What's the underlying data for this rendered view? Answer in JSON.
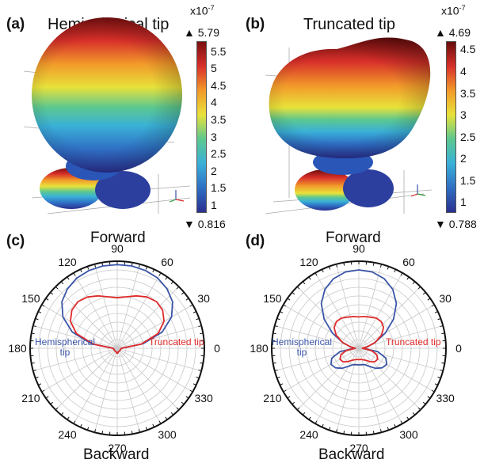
{
  "panels": {
    "a": {
      "label": "(a)",
      "title": "Hemispherical tip",
      "cb_exp": "x10",
      "cb_exp_sup": "-7",
      "cb_max": "5.79",
      "cb_min": "0.816",
      "cb_ticks": [
        "5.5",
        "5",
        "4.5",
        "4",
        "3.5",
        "3",
        "2.5",
        "2",
        "1.5",
        "1"
      ]
    },
    "b": {
      "label": "(b)",
      "title": "Truncated tip",
      "cb_exp": "x10",
      "cb_exp_sup": "-7",
      "cb_max": "4.69",
      "cb_min": "0.788",
      "cb_ticks": [
        "4.5",
        "4",
        "3.5",
        "3",
        "2.5",
        "2",
        "1.5",
        "1"
      ]
    },
    "c": {
      "label": "(c)",
      "forward": "Forward",
      "backward": "Backward",
      "hemi_label_1": "Hemispherical",
      "hemi_label_2": "tip",
      "trunc_label": "Truncated tip"
    },
    "d": {
      "label": "(d)",
      "forward": "Forward",
      "backward": "Backward",
      "hemi_label_1": "Hemispherical",
      "hemi_label_2": "tip",
      "trunc_label": "Truncated tip"
    }
  },
  "colors": {
    "hemispherical": "#3a55a8",
    "truncated": "#e02a2a"
  },
  "chart_data": [
    {
      "type": "polar",
      "panel": "c",
      "angle_ticks": [
        "0",
        "30",
        "60",
        "90",
        "120",
        "150",
        "180",
        "210",
        "240",
        "270",
        "300",
        "330"
      ],
      "series": [
        {
          "name": "Hemispherical tip",
          "color": "#3a55a8",
          "theta": [
            0,
            10,
            20,
            30,
            40,
            50,
            60,
            70,
            80,
            90,
            100,
            110,
            120,
            130,
            140,
            150,
            160,
            170,
            180,
            190,
            200,
            210,
            220,
            230,
            240,
            250,
            260,
            270,
            280,
            290,
            300,
            310,
            320,
            330,
            340,
            350
          ],
          "r": [
            0.05,
            0.3,
            0.55,
            0.72,
            0.83,
            0.89,
            0.93,
            0.95,
            0.96,
            0.96,
            0.96,
            0.95,
            0.93,
            0.89,
            0.83,
            0.72,
            0.55,
            0.3,
            0.05,
            0.04,
            0.04,
            0.04,
            0.04,
            0.04,
            0.04,
            0.04,
            0.05,
            0.06,
            0.05,
            0.04,
            0.04,
            0.04,
            0.04,
            0.04,
            0.04,
            0.04
          ]
        },
        {
          "name": "Truncated tip",
          "color": "#e02a2a",
          "theta": [
            0,
            10,
            20,
            30,
            40,
            50,
            60,
            70,
            80,
            90,
            100,
            110,
            120,
            130,
            140,
            150,
            160,
            170,
            180,
            190,
            200,
            210,
            220,
            230,
            240,
            250,
            260,
            270,
            280,
            290,
            300,
            310,
            320,
            330,
            340,
            350
          ],
          "r": [
            0.05,
            0.28,
            0.5,
            0.62,
            0.68,
            0.7,
            0.68,
            0.64,
            0.6,
            0.58,
            0.6,
            0.64,
            0.68,
            0.7,
            0.68,
            0.62,
            0.5,
            0.28,
            0.05,
            0.04,
            0.04,
            0.04,
            0.04,
            0.04,
            0.04,
            0.04,
            0.05,
            0.06,
            0.05,
            0.04,
            0.04,
            0.04,
            0.04,
            0.04,
            0.04,
            0.04
          ]
        }
      ]
    },
    {
      "type": "polar",
      "panel": "d",
      "angle_ticks": [
        "0",
        "30",
        "60",
        "90",
        "120",
        "150",
        "180",
        "210",
        "240",
        "270",
        "300",
        "330"
      ],
      "series": [
        {
          "name": "Hemispherical tip",
          "color": "#3a55a8",
          "theta": [
            0,
            10,
            20,
            30,
            40,
            50,
            60,
            70,
            80,
            90,
            100,
            110,
            120,
            130,
            140,
            150,
            160,
            170,
            180,
            190,
            200,
            210,
            220,
            230,
            240,
            250,
            260,
            270,
            280,
            290,
            300,
            310,
            320,
            330,
            340,
            350
          ],
          "r": [
            0.05,
            0.1,
            0.2,
            0.35,
            0.52,
            0.67,
            0.78,
            0.85,
            0.89,
            0.9,
            0.89,
            0.85,
            0.78,
            0.67,
            0.52,
            0.35,
            0.2,
            0.1,
            0.05,
            0.22,
            0.33,
            0.37,
            0.35,
            0.3,
            0.24,
            0.2,
            0.19,
            0.19,
            0.19,
            0.2,
            0.24,
            0.3,
            0.35,
            0.37,
            0.33,
            0.22
          ]
        },
        {
          "name": "Truncated tip",
          "color": "#e02a2a",
          "theta": [
            0,
            10,
            20,
            30,
            40,
            50,
            60,
            70,
            80,
            90,
            100,
            110,
            120,
            130,
            140,
            150,
            160,
            170,
            180,
            190,
            200,
            210,
            220,
            230,
            240,
            250,
            260,
            270,
            280,
            290,
            300,
            310,
            320,
            330,
            340,
            350
          ],
          "r": [
            0.04,
            0.1,
            0.2,
            0.3,
            0.37,
            0.4,
            0.4,
            0.38,
            0.37,
            0.36,
            0.37,
            0.38,
            0.4,
            0.4,
            0.37,
            0.3,
            0.2,
            0.1,
            0.04,
            0.15,
            0.22,
            0.25,
            0.24,
            0.2,
            0.16,
            0.14,
            0.13,
            0.13,
            0.13,
            0.14,
            0.16,
            0.2,
            0.24,
            0.25,
            0.22,
            0.15
          ]
        }
      ]
    }
  ]
}
